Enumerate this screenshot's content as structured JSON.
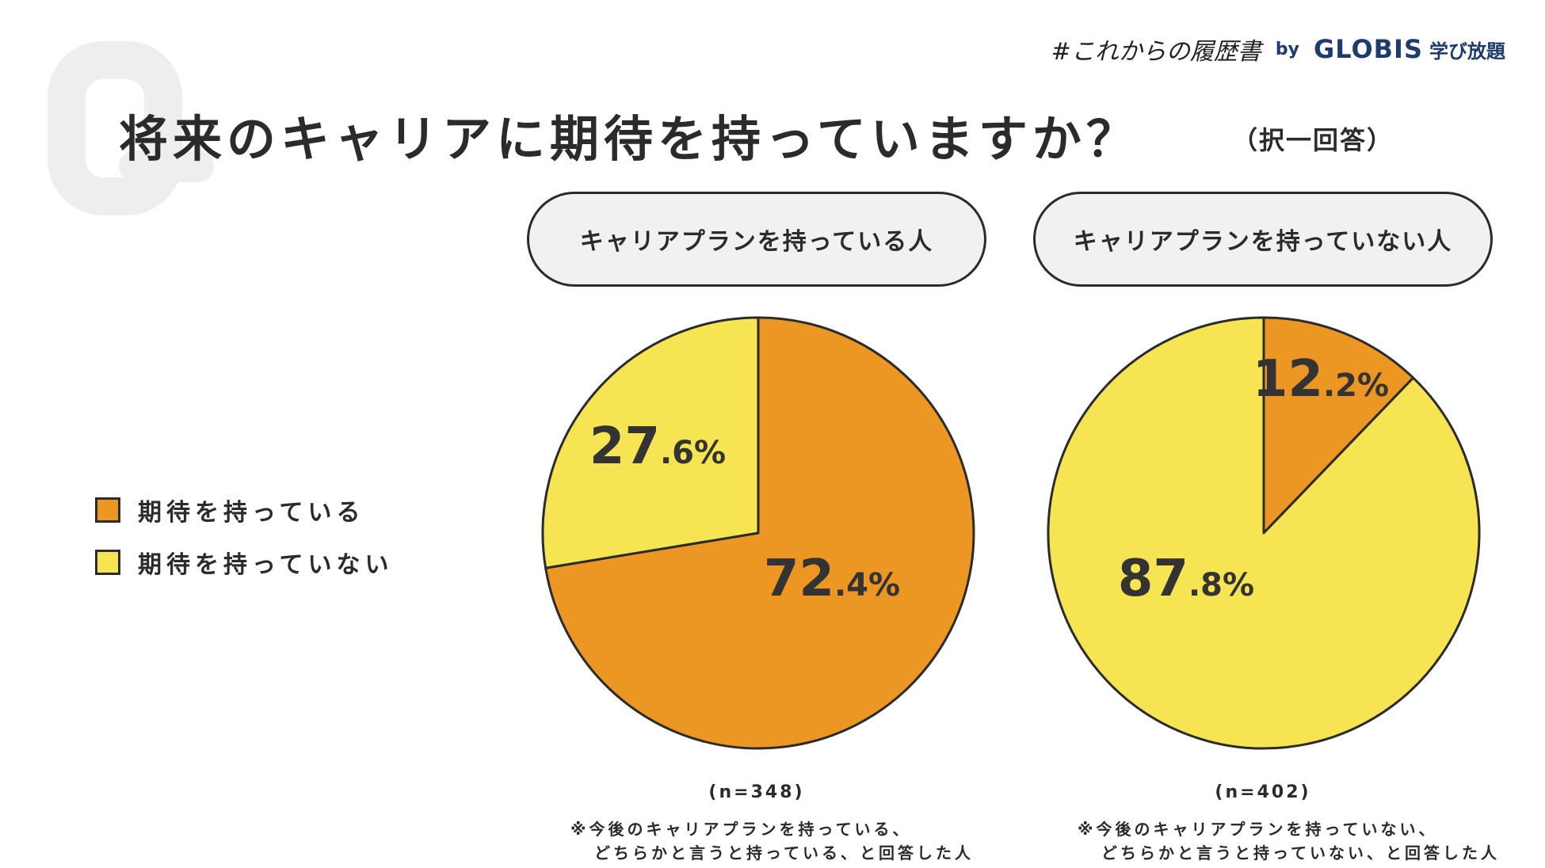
{
  "header": {
    "brand_tag": "#これからの履歴書",
    "brand_by": "by",
    "brand_name": "GLOBIS",
    "brand_service": "学び放題"
  },
  "title": "将来のキャリアに期待を持っていますか？",
  "title_note": "（択一回答）",
  "legend": [
    {
      "label": "期待を持っている",
      "color": "#ec9624"
    },
    {
      "label": "期待を持っていない",
      "color": "#f6e452"
    }
  ],
  "groups": {
    "left": {
      "label": "キャリアプランを持っている人",
      "n": "(n=348)",
      "note_line1": "※今後のキャリアプランを持っている、",
      "note_line2": "どちらかと言うと持っている、と回答した人"
    },
    "right": {
      "label": "キャリアプランを持っていない人",
      "n": "(n=402)",
      "note_line1": "※今後のキャリアプランを持っていない、",
      "note_line2": "どちらかと言うと持っていない、と回答した人"
    }
  },
  "chart_data": [
    {
      "type": "pie",
      "title": "キャリアプランを持っている人",
      "categories": [
        "期待を持っている",
        "期待を持っていない"
      ],
      "values": [
        72.4,
        27.6
      ],
      "labels": [
        {
          "int": "72",
          "dec": ".4%"
        },
        {
          "int": "27",
          "dec": ".6%"
        }
      ],
      "colors": [
        "#ec9624",
        "#f6e452"
      ],
      "legend": "left"
    },
    {
      "type": "pie",
      "title": "キャリアプランを持っていない人",
      "categories": [
        "期待を持っている",
        "期待を持っていない"
      ],
      "values": [
        12.2,
        87.8
      ],
      "labels": [
        {
          "int": "12",
          "dec": ".2%"
        },
        {
          "int": "87",
          "dec": ".8%"
        }
      ],
      "colors": [
        "#ec9624",
        "#f6e452"
      ],
      "legend": "left"
    }
  ]
}
